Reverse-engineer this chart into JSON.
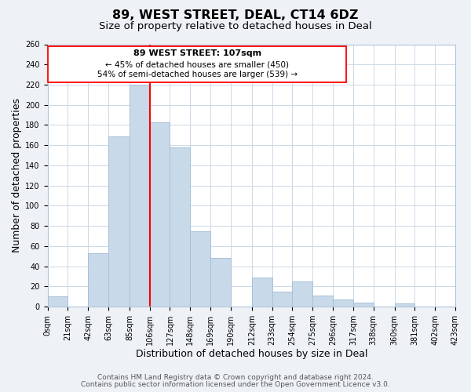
{
  "title": "89, WEST STREET, DEAL, CT14 6DZ",
  "subtitle": "Size of property relative to detached houses in Deal",
  "xlabel": "Distribution of detached houses by size in Deal",
  "ylabel": "Number of detached properties",
  "bar_color": "#c8daea",
  "bar_edge_color": "#a8c0d6",
  "red_line_x": 106,
  "annotation_title": "89 WEST STREET: 107sqm",
  "annotation_line1": "← 45% of detached houses are smaller (450)",
  "annotation_line2": "54% of semi-detached houses are larger (539) →",
  "footer1": "Contains HM Land Registry data © Crown copyright and database right 2024.",
  "footer2": "Contains public sector information licensed under the Open Government Licence v3.0.",
  "bins_left": [
    0,
    21,
    42,
    63,
    85,
    106,
    127,
    148,
    169,
    190,
    212,
    233,
    254,
    275,
    296,
    317,
    338,
    360,
    381,
    402
  ],
  "bin_widths": [
    21,
    21,
    21,
    22,
    21,
    21,
    21,
    21,
    21,
    22,
    21,
    21,
    21,
    21,
    21,
    21,
    22,
    21,
    21,
    21
  ],
  "counts": [
    10,
    0,
    53,
    169,
    220,
    183,
    158,
    75,
    48,
    0,
    29,
    15,
    25,
    11,
    7,
    4,
    0,
    3,
    0,
    0
  ],
  "tick_labels": [
    "0sqm",
    "21sqm",
    "42sqm",
    "63sqm",
    "85sqm",
    "106sqm",
    "127sqm",
    "148sqm",
    "169sqm",
    "190sqm",
    "212sqm",
    "233sqm",
    "254sqm",
    "275sqm",
    "296sqm",
    "317sqm",
    "338sqm",
    "360sqm",
    "381sqm",
    "402sqm",
    "423sqm"
  ],
  "tick_positions": [
    0,
    21,
    42,
    63,
    85,
    106,
    127,
    148,
    169,
    190,
    212,
    233,
    254,
    275,
    296,
    317,
    338,
    360,
    381,
    402,
    423
  ],
  "xlim": [
    0,
    423
  ],
  "ylim": [
    0,
    260
  ],
  "yticks": [
    0,
    20,
    40,
    60,
    80,
    100,
    120,
    140,
    160,
    180,
    200,
    220,
    240,
    260
  ],
  "background_color": "#eef2f7",
  "plot_bg_color": "#ffffff",
  "grid_color": "#ccd8e8",
  "title_fontsize": 11.5,
  "subtitle_fontsize": 9.5,
  "axis_label_fontsize": 9,
  "tick_fontsize": 7,
  "footer_fontsize": 6.5
}
